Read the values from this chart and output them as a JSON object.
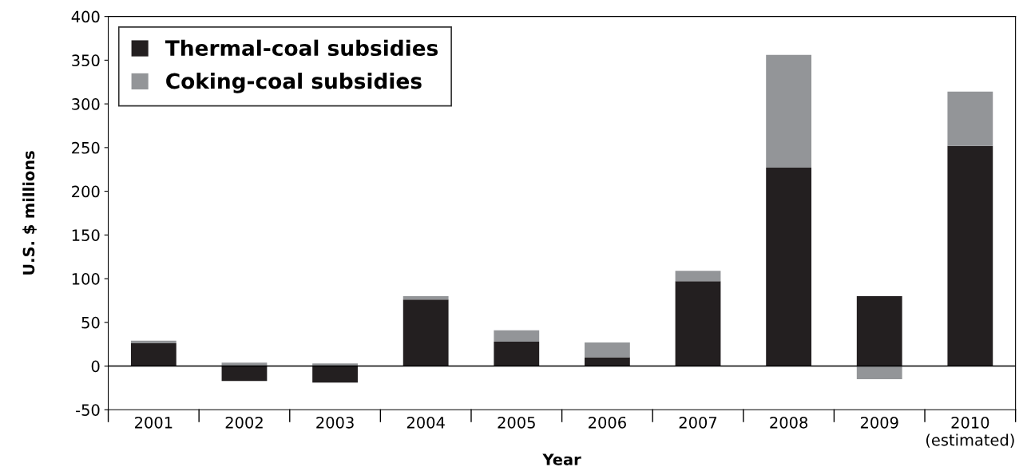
{
  "chart_data": {
    "type": "bar",
    "stacked": true,
    "xlabel": "Year",
    "ylabel": "U.S. $ millions",
    "categories": [
      "2001",
      "2002",
      "2003",
      "2004",
      "2005",
      "2006",
      "2007",
      "2008",
      "2009",
      "2010\n(estimated)"
    ],
    "series": [
      {
        "name": "Thermal-coal subsidies",
        "color": "#231f20",
        "values": [
          26,
          -17,
          -19,
          76,
          28,
          10,
          97,
          227,
          80,
          252
        ]
      },
      {
        "name": "Coking-coal subsidies",
        "color": "#939598",
        "values": [
          3,
          4,
          3,
          4,
          13,
          17,
          12,
          129,
          -15,
          62
        ]
      }
    ],
    "ylim": [
      -50,
      400
    ],
    "yticks": [
      {
        "value": -50,
        "label": "-50"
      },
      0,
      50,
      100,
      150,
      200,
      250,
      300,
      350,
      400
    ],
    "ref_lines": [
      {
        "axis": "y",
        "value": 0,
        "label": null,
        "color": "#000000"
      }
    ],
    "grid": false,
    "legend": "top left"
  }
}
